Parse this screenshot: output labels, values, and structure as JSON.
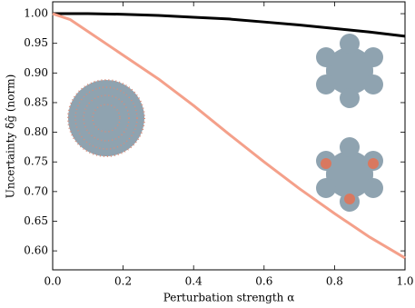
{
  "chart_data": {
    "type": "line",
    "xlabel": "Perturbation strength α",
    "ylabel": "Uncertainty δĝ (norm)",
    "x": [
      0,
      0.05,
      0.1,
      0.2,
      0.3,
      0.4,
      0.5,
      0.6,
      0.7,
      0.8,
      0.9,
      1.0
    ],
    "series": [
      {
        "color": "#000000",
        "values": [
          1.0,
          1.0,
          1.0,
          0.999,
          0.997,
          0.994,
          0.991,
          0.986,
          0.981,
          0.975,
          0.969,
          0.962
        ]
      },
      {
        "color": "#f4a08a",
        "values": [
          1.0,
          0.99,
          0.97,
          0.93,
          0.89,
          0.845,
          0.797,
          0.75,
          0.705,
          0.663,
          0.623,
          0.588
        ]
      }
    ],
    "xlim": [
      0,
      1.0
    ],
    "xticks": [
      {
        "value": 0,
        "label": "0.0"
      },
      0.2,
      0.4,
      0.6,
      0.8,
      {
        "value": 1.0,
        "label": "1.0"
      }
    ],
    "ylim": [
      0.568,
      1.02
    ],
    "yticks": [
      {
        "value": 0.6,
        "label": "0.60"
      },
      0.65,
      {
        "value": 0.7,
        "label": "0.70"
      },
      0.75,
      {
        "value": 0.8,
        "label": "0.80"
      },
      0.85,
      {
        "value": 0.9,
        "label": "0.90"
      },
      0.95,
      {
        "value": 1.0,
        "label": "1.00"
      }
    ]
  }
}
